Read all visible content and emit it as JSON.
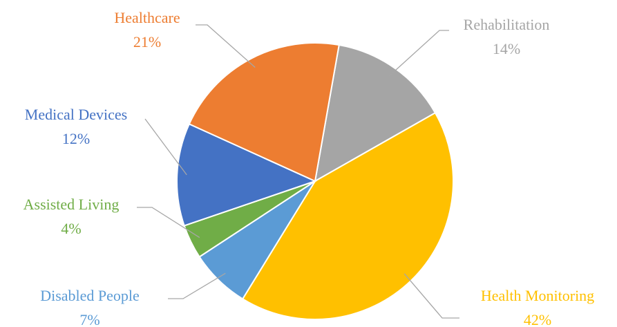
{
  "chart_data": {
    "type": "pie",
    "categories": [
      "Rehabilitation",
      "Health Monitoring",
      "Disabled People",
      "Assisted Living",
      "Medical Devices",
      "Healthcare"
    ],
    "values": [
      14,
      42,
      7,
      4,
      12,
      21
    ],
    "value_labels": [
      "14%",
      "42%",
      "7%",
      "4%",
      "12%",
      "21%"
    ],
    "colors": [
      "#a5a5a5",
      "#ffc000",
      "#5b9bd5",
      "#70ad47",
      "#4472c4",
      "#ed7d31"
    ]
  }
}
